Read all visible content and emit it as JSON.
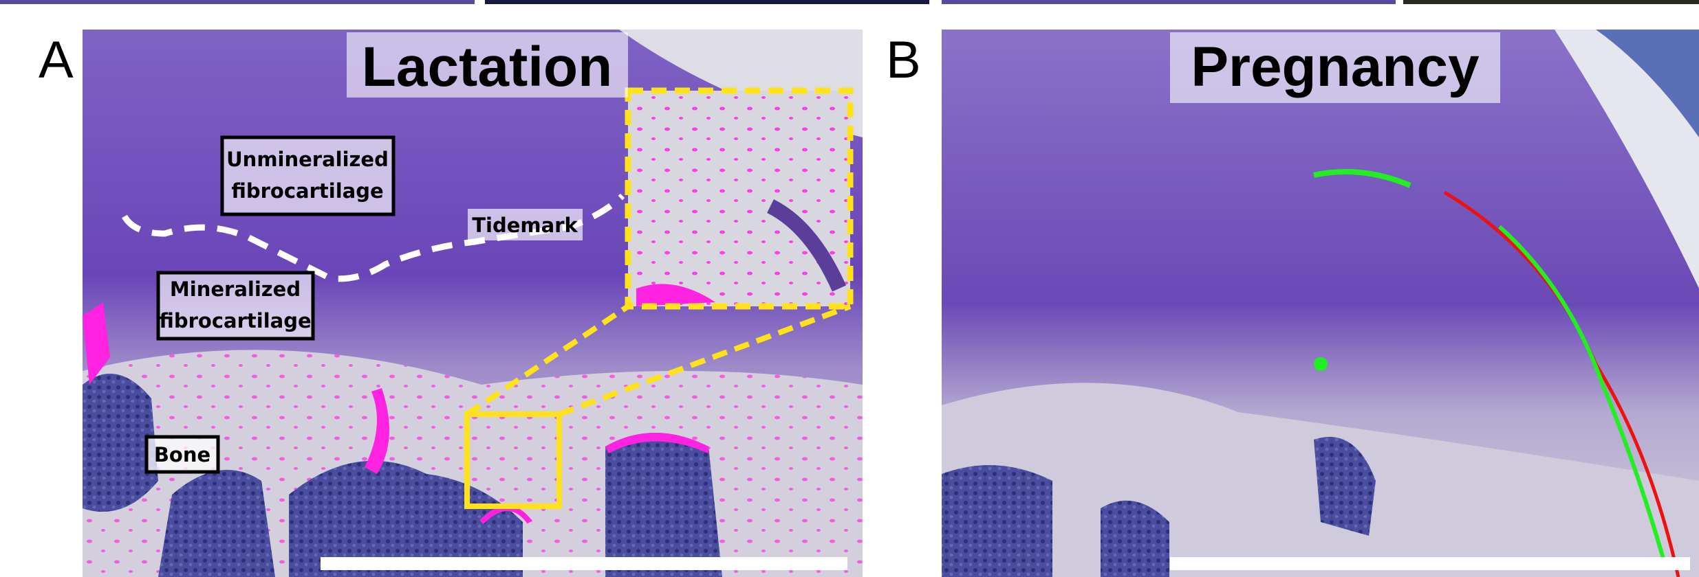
{
  "panels": [
    {
      "letter": "A",
      "title": "Lactation",
      "labels": [
        {
          "lines": [
            "Unmineralized",
            "fibrocartilage"
          ]
        },
        {
          "lines": [
            "Tidemark"
          ]
        },
        {
          "lines": [
            "Mineralized",
            "fibrocartilage"
          ]
        },
        {
          "lines": [
            "Bone"
          ]
        }
      ]
    },
    {
      "letter": "B",
      "title": "Pregnancy"
    }
  ]
}
